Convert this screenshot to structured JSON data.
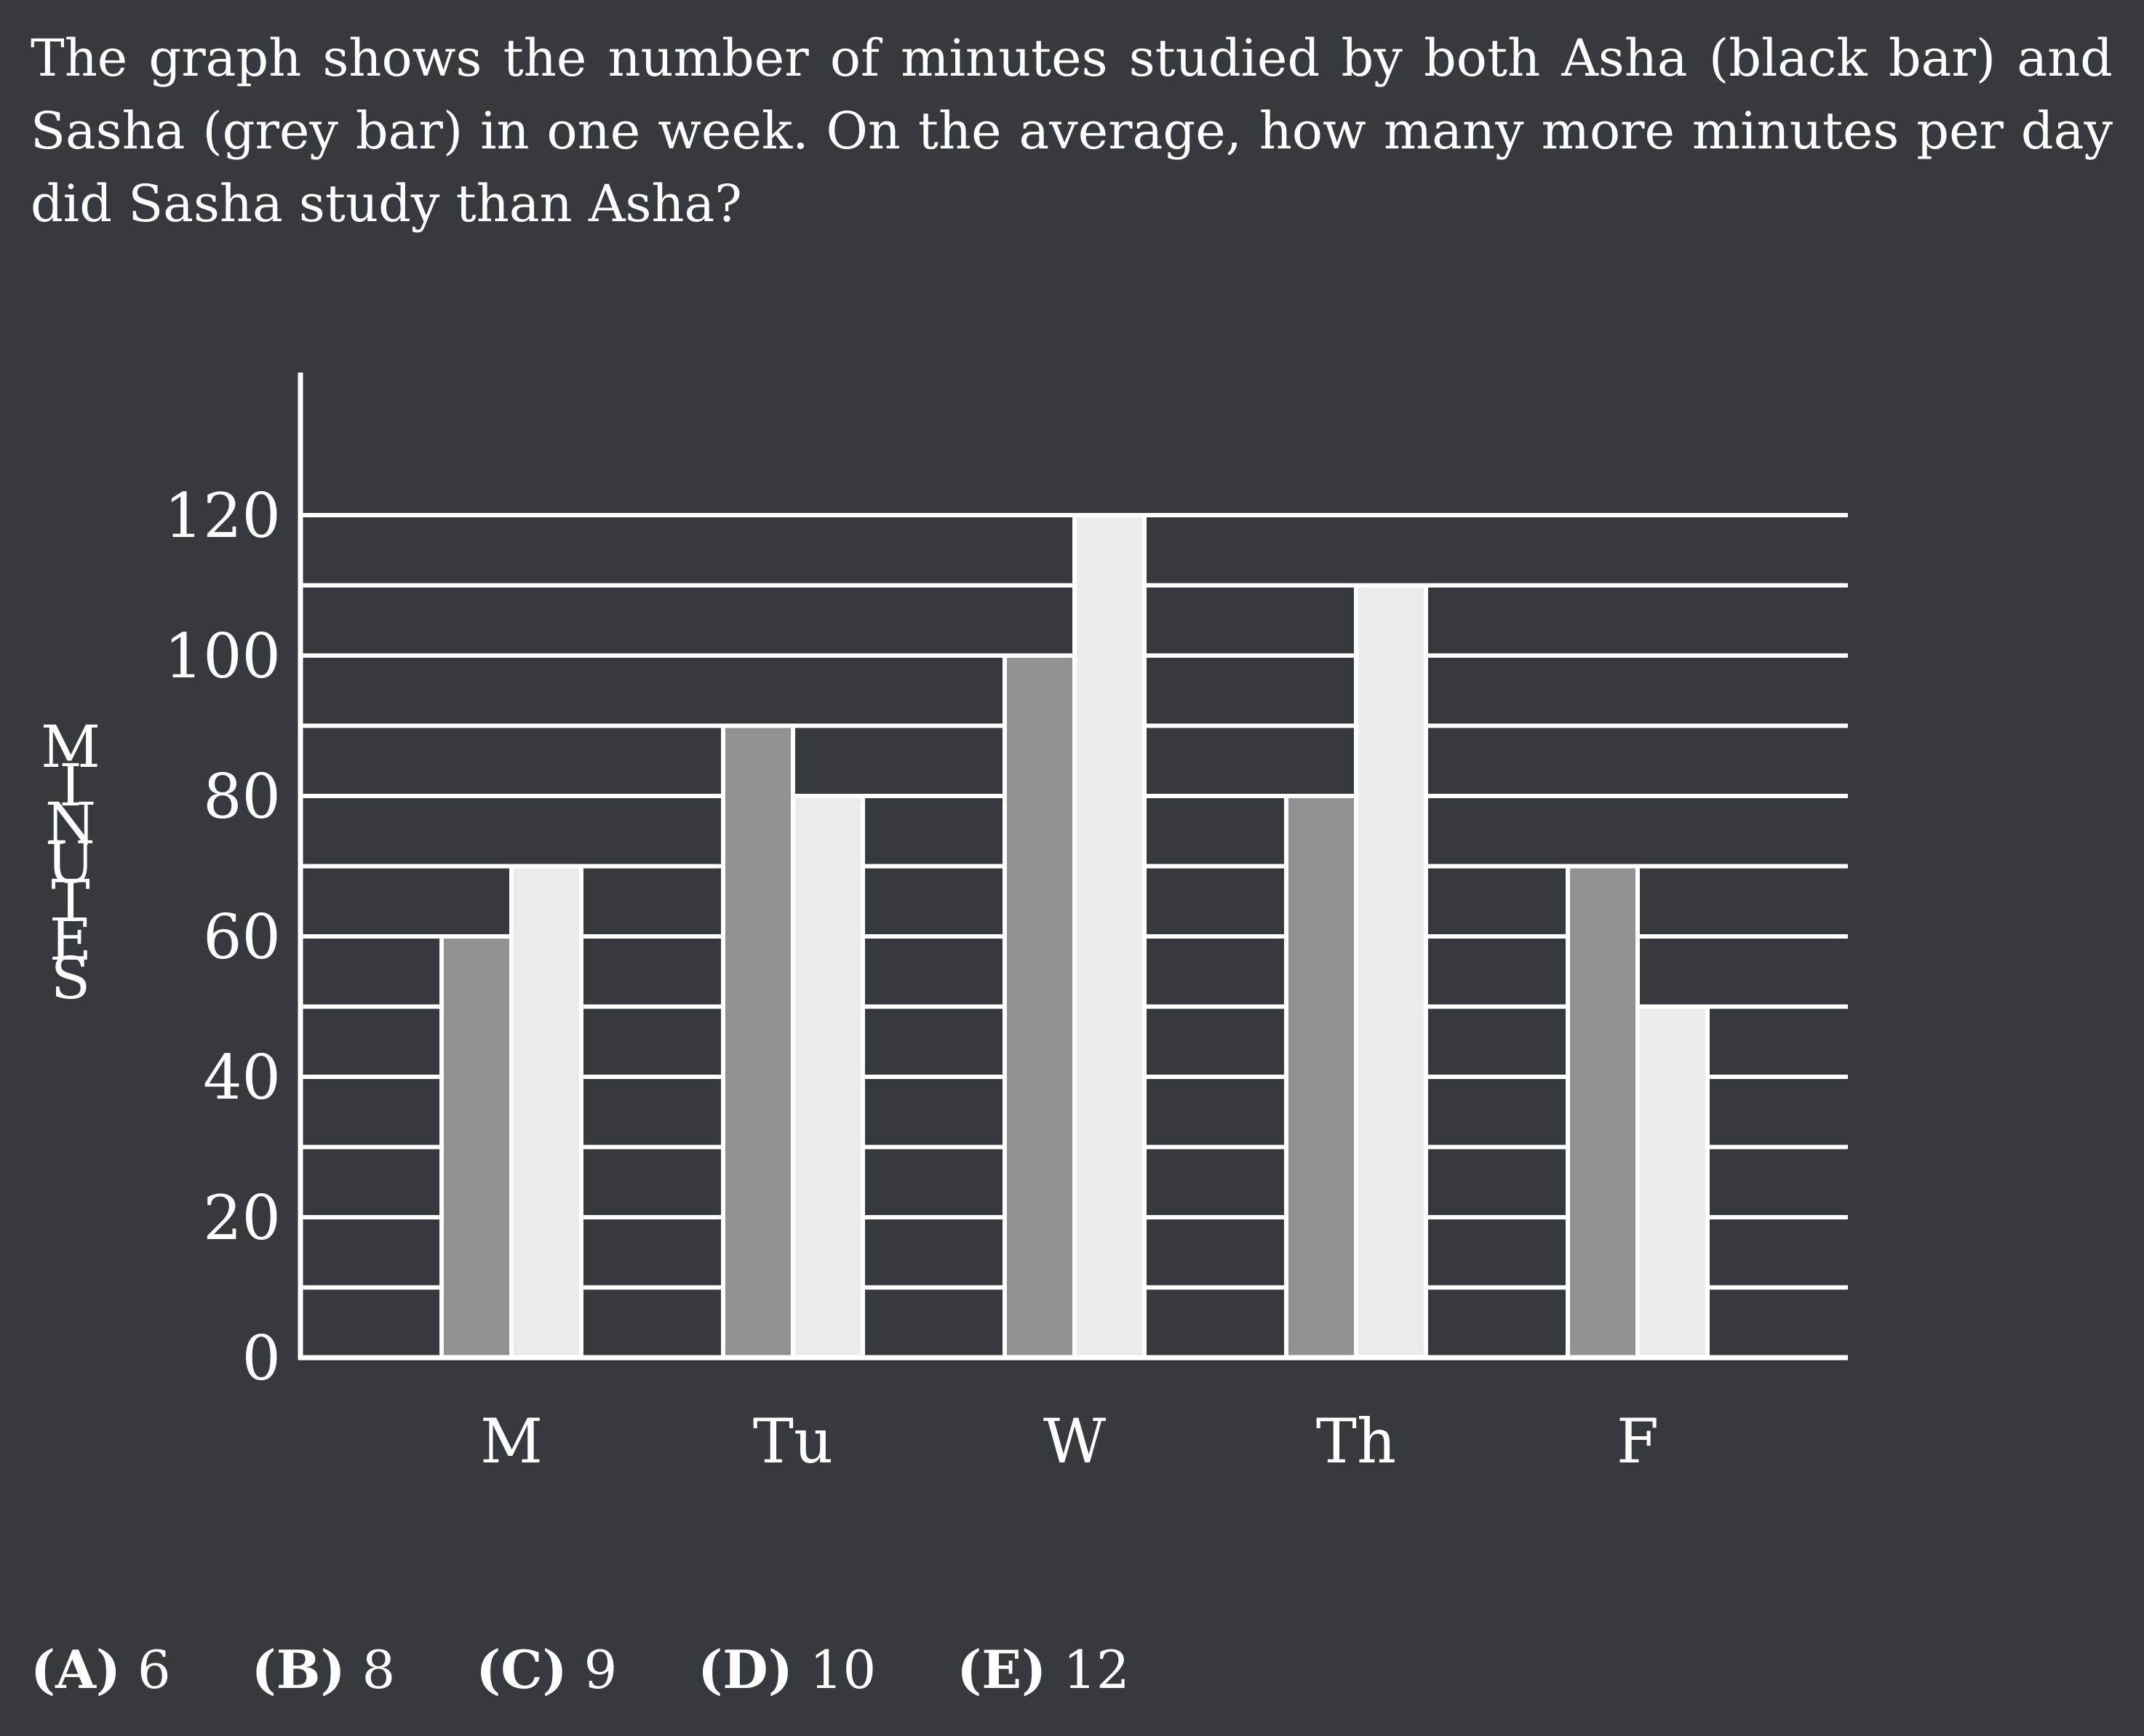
{
  "question": "The graph shows the number of minutes studied by both Asha (black bar) and Sasha (grey bar) in one week.  On the average, how many more minutes per day did Sasha study than Asha?",
  "chart_data": {
    "type": "bar",
    "categories": [
      "M",
      "Tu",
      "W",
      "Th",
      "F"
    ],
    "series": [
      {
        "values": [
          60,
          90,
          100,
          80,
          70
        ],
        "color": "#919191"
      },
      {
        "values": [
          70,
          80,
          120,
          110,
          50
        ],
        "color": "#ebebeb"
      }
    ],
    "ylabel": "MINUTES",
    "ylim": [
      0,
      120
    ],
    "yticks": [
      0,
      20,
      40,
      60,
      80,
      100,
      120
    ],
    "gridlines_every": 10,
    "grid": true
  },
  "choices": [
    {
      "letter": "(A)",
      "value": "6"
    },
    {
      "letter": "(B)",
      "value": "8"
    },
    {
      "letter": "(C)",
      "value": "9"
    },
    {
      "letter": "(D)",
      "value": "10"
    },
    {
      "letter": "(E)",
      "value": "12"
    }
  ]
}
